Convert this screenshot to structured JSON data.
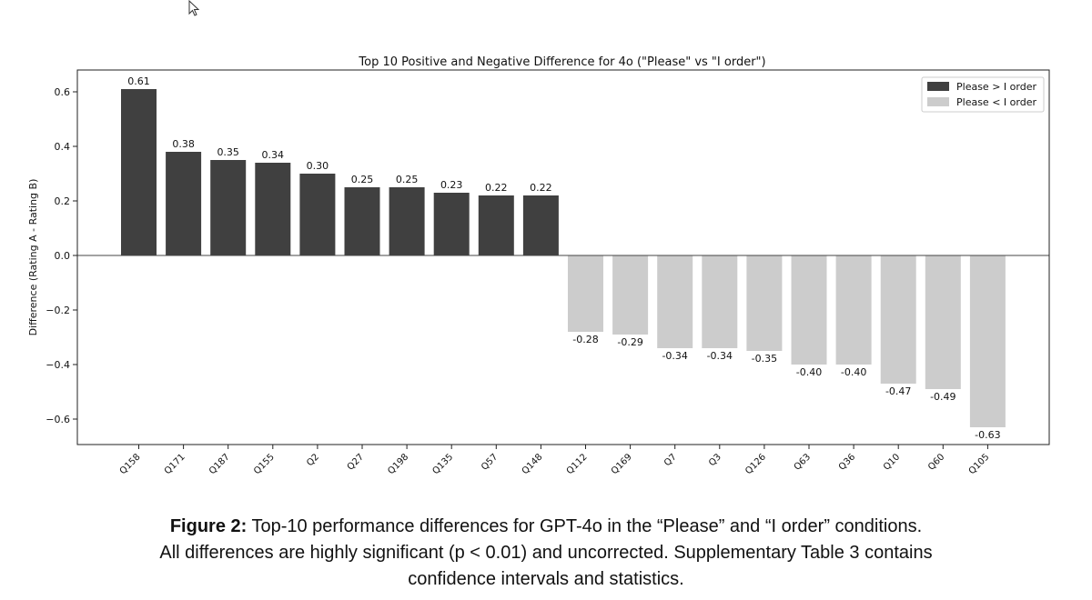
{
  "chart_data": {
    "type": "bar",
    "title": "Top 10 Positive and Negative Difference for 4o (\"Please\" vs \"I order\")",
    "xlabel": "",
    "ylabel": "Difference (Rating A - Rating B)",
    "ylim": [
      -0.7,
      0.67
    ],
    "yticks": [
      0.6,
      0.4,
      0.2,
      0.0,
      -0.2,
      -0.4,
      -0.6
    ],
    "ytick_labels": [
      "0.6",
      "0.4",
      "0.2",
      "0.0",
      "−0.2",
      "−0.4",
      "−0.6"
    ],
    "categories": [
      "Q158",
      "Q171",
      "Q187",
      "Q155",
      "Q2",
      "Q27",
      "Q198",
      "Q135",
      "Q57",
      "Q148",
      "Q112",
      "Q169",
      "Q7",
      "Q3",
      "Q126",
      "Q63",
      "Q36",
      "Q10",
      "Q60",
      "Q105"
    ],
    "values": [
      0.61,
      0.38,
      0.35,
      0.34,
      0.3,
      0.25,
      0.25,
      0.23,
      0.22,
      0.22,
      -0.28,
      -0.29,
      -0.34,
      -0.34,
      -0.35,
      -0.4,
      -0.4,
      -0.47,
      -0.49,
      -0.63
    ],
    "value_labels": [
      "0.61",
      "0.38",
      "0.35",
      "0.34",
      "0.30",
      "0.25",
      "0.25",
      "0.23",
      "0.22",
      "0.22",
      "-0.28",
      "-0.29",
      "-0.34",
      "-0.34",
      "-0.35",
      "-0.40",
      "-0.40",
      "-0.47",
      "-0.49",
      "-0.63"
    ],
    "legend": {
      "placement": "top-right",
      "entries": [
        {
          "label": "Please > I order",
          "color": "#404040"
        },
        {
          "label": "Please < I order",
          "color": "#cccccc"
        }
      ]
    },
    "colors": {
      "positive": "#404040",
      "negative": "#cccccc"
    },
    "grid": false
  },
  "caption": {
    "label": "Figure 2:",
    "line1": " Top-10 performance differences for GPT-4o in the “Please” and “I order” conditions.",
    "line2": "All differences are highly significant (p < 0.01) and uncorrected. Supplementary Table 3 contains",
    "line3": "confidence intervals and statistics."
  }
}
